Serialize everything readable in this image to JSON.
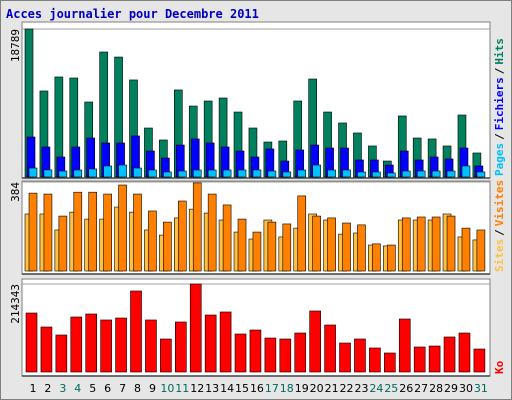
{
  "chart_data": {
    "type": "bar",
    "title": "Acces journalier pour Decembre 2011",
    "legend_separator": "/",
    "categories": [
      "1",
      "2",
      "3",
      "4",
      "5",
      "6",
      "7",
      "8",
      "9",
      "10",
      "11",
      "12",
      "13",
      "14",
      "15",
      "16",
      "17",
      "18",
      "19",
      "20",
      "21",
      "22",
      "23",
      "24",
      "25",
      "26",
      "27",
      "28",
      "29",
      "30",
      "31"
    ],
    "category_colors": [
      "#000000",
      "#000000",
      "#006a5c",
      "#006a5c",
      "#000000",
      "#000000",
      "#000000",
      "#000000",
      "#000000",
      "#006a5c",
      "#006a5c",
      "#000000",
      "#000000",
      "#000000",
      "#000000",
      "#000000",
      "#006a5c",
      "#006a5c",
      "#000000",
      "#000000",
      "#000000",
      "#000000",
      "#000000",
      "#006a5c",
      "#006a5c",
      "#000000",
      "#000000",
      "#000000",
      "#000000",
      "#000000",
      "#006a5c"
    ],
    "panels": [
      {
        "ylim": [
          0,
          18789
        ],
        "yticks": [
          18789
        ],
        "series": [
          {
            "name": "Hits",
            "color": "#00805c",
            "values": [
              18789,
              10920,
              12700,
              12570,
              9520,
              15870,
              15230,
              12320,
              6220,
              4700,
              11050,
              9010,
              9650,
              10030,
              8250,
              6220,
              4440,
              4570,
              9650,
              12440,
              8250,
              6860,
              5590,
              3940,
              2030,
              7750,
              4950,
              4830,
              3940,
              7870,
              3050
            ]
          },
          {
            "name": "Fichiers",
            "color": "#0000ff",
            "values": [
              5080,
              3810,
              2540,
              3810,
              4950,
              4320,
              4320,
              5210,
              3300,
              2410,
              4060,
              4830,
              4320,
              3810,
              3300,
              2540,
              3560,
              2030,
              3430,
              4060,
              3680,
              3680,
              2160,
              2160,
              1520,
              3300,
              2160,
              2540,
              2290,
              3680,
              1400
            ]
          },
          {
            "name": "Pages",
            "color": "#00c0ff",
            "values": [
              1140,
              900,
              760,
              890,
              1020,
              1400,
              1520,
              1140,
              890,
              640,
              760,
              890,
              890,
              890,
              890,
              890,
              760,
              640,
              890,
              1520,
              890,
              890,
              640,
              640,
              510,
              760,
              760,
              760,
              760,
              1400,
              640
            ]
          }
        ]
      },
      {
        "ylim": [
          0,
          384
        ],
        "yticks": [
          384
        ],
        "series": [
          {
            "name": "Visites",
            "color": "#ff8000",
            "values": [
              336,
              332,
              237,
              340,
              340,
              332,
              371,
              332,
              259,
              211,
              302,
              380,
              332,
              285,
              224,
              168,
              211,
              203,
              324,
              237,
              229,
              207,
              199,
              117,
              112,
              229,
              233,
              233,
              237,
              185,
              177
            ]
          },
          {
            "name": "Sites",
            "color": "#ffc040",
            "values": [
              246,
              246,
              177,
              254,
              224,
              224,
              276,
              254,
              177,
              155,
              229,
              267,
              250,
              220,
              168,
              138,
              220,
              147,
              185,
              246,
              220,
              159,
              164,
              112,
              108,
              220,
              220,
              220,
              246,
              147,
              134
            ]
          }
        ]
      },
      {
        "ylim": [
          0,
          214343
        ],
        "yticks": [
          214343
        ],
        "series": [
          {
            "name": "Ko",
            "color": "#ff0000",
            "values": [
              143700,
              109600,
              90100,
              134000,
              141300,
              126700,
              131500,
              197300,
              126700,
              80400,
              121800,
              214343,
              138800,
              146200,
              92600,
              102300,
              82800,
              80400,
              95000,
              148600,
              114500,
              70600,
              80400,
              58500,
              46300,
              129100,
              60900,
              63300,
              85300,
              95000,
              56000
            ]
          }
        ]
      }
    ]
  }
}
